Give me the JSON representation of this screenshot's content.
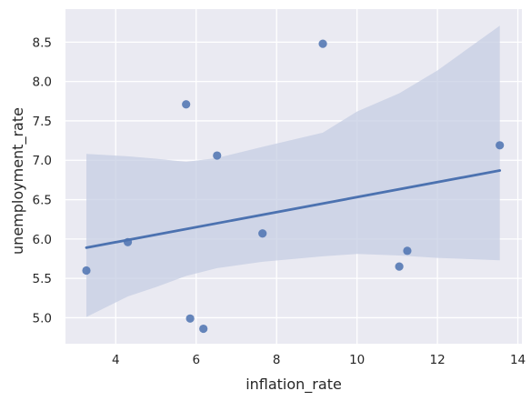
{
  "chart_data": {
    "type": "scatter",
    "title": "",
    "xlabel": "inflation_rate",
    "ylabel": "unemployment_rate",
    "xlim": [
      2.75,
      14.1
    ],
    "ylim": [
      4.67,
      8.92
    ],
    "xticks": [
      4,
      6,
      8,
      10,
      12,
      14
    ],
    "yticks": [
      5.0,
      5.5,
      6.0,
      6.5,
      7.0,
      7.5,
      8.0,
      8.5
    ],
    "xtick_labels": [
      "4",
      "6",
      "8",
      "10",
      "12",
      "14"
    ],
    "ytick_labels": [
      "5.0",
      "5.5",
      "6.0",
      "6.5",
      "7.0",
      "7.5",
      "8.0",
      "8.5"
    ],
    "grid": true,
    "legend": "none",
    "points": [
      {
        "x": 3.27,
        "y": 5.6
      },
      {
        "x": 4.3,
        "y": 5.96
      },
      {
        "x": 5.75,
        "y": 7.71
      },
      {
        "x": 5.85,
        "y": 4.99
      },
      {
        "x": 6.18,
        "y": 4.86
      },
      {
        "x": 6.52,
        "y": 7.06
      },
      {
        "x": 7.65,
        "y": 6.07
      },
      {
        "x": 9.15,
        "y": 8.48
      },
      {
        "x": 11.05,
        "y": 5.65
      },
      {
        "x": 11.25,
        "y": 5.85
      },
      {
        "x": 13.55,
        "y": 7.19
      }
    ],
    "regression": {
      "x": [
        3.27,
        13.55
      ],
      "y": [
        5.89,
        6.87
      ]
    },
    "confidence_band": {
      "x": [
        3.27,
        4.3,
        5.0,
        5.75,
        6.52,
        7.65,
        9.15,
        10.0,
        11.05,
        12.0,
        13.55
      ],
      "lower": [
        5.01,
        5.27,
        5.39,
        5.53,
        5.63,
        5.71,
        5.78,
        5.81,
        5.79,
        5.76,
        5.73
      ],
      "upper": [
        7.08,
        7.05,
        7.02,
        6.98,
        7.03,
        7.17,
        7.35,
        7.62,
        7.85,
        8.14,
        8.71
      ]
    },
    "colors": {
      "background": "#eaeaf2",
      "grid": "#ffffff",
      "point": "#4c72b0",
      "line": "#4c72b0",
      "band": "#c5cde3"
    }
  }
}
